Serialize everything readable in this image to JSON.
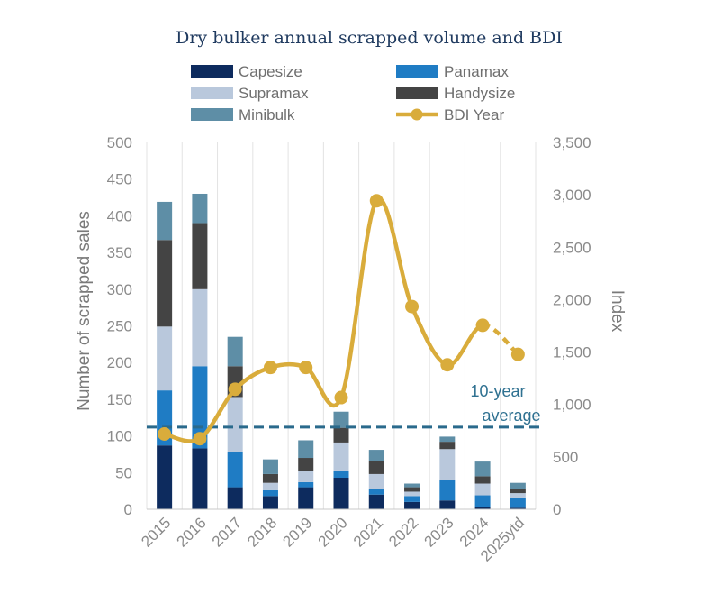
{
  "chart_data": {
    "type": "bar",
    "title": "Dry bulker annual scrapped volume and BDI",
    "categories": [
      "2015",
      "2016",
      "2017",
      "2018",
      "2019",
      "2020",
      "2021",
      "2022",
      "2023",
      "2024",
      "2025ytd"
    ],
    "ylabel": "Number of scrapped sales",
    "y2label": "Index",
    "ylim": [
      0,
      500
    ],
    "y2lim": [
      0,
      3500
    ],
    "yticks": [
      "0",
      "50",
      "100",
      "150",
      "200",
      "250",
      "300",
      "350",
      "400",
      "450",
      "500"
    ],
    "y2ticks": [
      "0",
      "500",
      "1,000",
      "1,500",
      "2,000",
      "2,500",
      "3,000",
      "3,500"
    ],
    "grid": "vertical",
    "legend_position": "top",
    "series": [
      {
        "name": "Capesize",
        "color": "#0d2b5e",
        "values": [
          87,
          83,
          30,
          18,
          30,
          43,
          20,
          10,
          12,
          3,
          2
        ]
      },
      {
        "name": "Panamax",
        "color": "#1f7cc4",
        "values": [
          75,
          112,
          48,
          8,
          7,
          10,
          8,
          8,
          28,
          16,
          14
        ]
      },
      {
        "name": "Supramax",
        "color": "#b9c8dc",
        "values": [
          87,
          105,
          75,
          10,
          15,
          38,
          20,
          6,
          42,
          16,
          6
        ]
      },
      {
        "name": "Handysize",
        "color": "#444444",
        "values": [
          118,
          90,
          42,
          12,
          18,
          20,
          18,
          6,
          10,
          10,
          6
        ]
      },
      {
        "name": "Minibulk",
        "color": "#5e8ea6",
        "values": [
          52,
          40,
          40,
          20,
          24,
          22,
          15,
          5,
          7,
          20,
          8
        ]
      }
    ],
    "line": {
      "name": "BDI Year",
      "color": "#d9ac3b",
      "values": [
        718,
        673,
        1145,
        1353,
        1353,
        1066,
        2943,
        1934,
        1378,
        1755,
        1478
      ],
      "dashed_last_segment": true
    },
    "reference_line": {
      "label_line1": "10-year",
      "label_line2": "average",
      "value": 112,
      "color": "#2a6a8c"
    }
  }
}
